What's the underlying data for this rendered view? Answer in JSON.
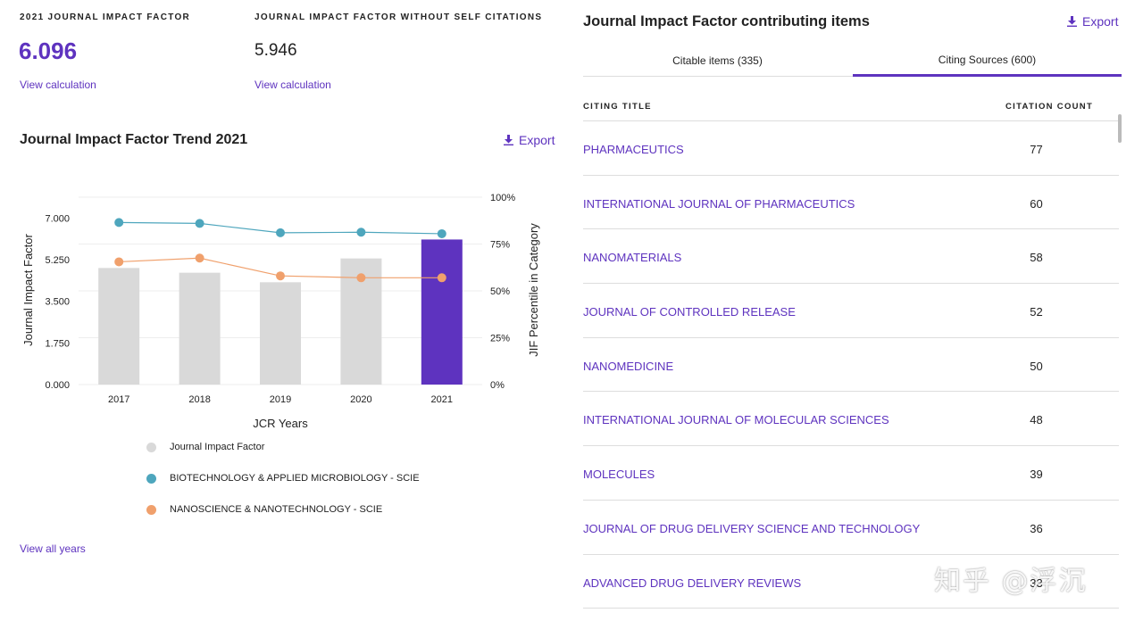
{
  "metrics": {
    "jif_label": "2021 JOURNAL IMPACT FACTOR",
    "jif_value": "6.096",
    "jif_link": "View calculation",
    "jif_no_self_label": "JOURNAL IMPACT FACTOR WITHOUT SELF CITATIONS",
    "jif_no_self_value": "5.946",
    "jif_no_self_link": "View calculation"
  },
  "trend": {
    "title": "Journal Impact Factor Trend 2021",
    "export_label": "Export",
    "view_all_years": "View all years"
  },
  "chart_data": {
    "type": "bar",
    "xlabel": "JCR Years",
    "ylabel": "Journal Impact Factor",
    "y2label": "JIF Percentile in Category",
    "categories": [
      "2017",
      "2018",
      "2019",
      "2020",
      "2021"
    ],
    "ylim": [
      0,
      7.875
    ],
    "y_ticks": [
      "0.000",
      "1.750",
      "3.500",
      "5.250",
      "7.000"
    ],
    "y2_ticks": [
      "0%",
      "25%",
      "50%",
      "75%",
      "100%"
    ],
    "bars": {
      "name": "Journal Impact Factor",
      "values": [
        4.9,
        4.7,
        4.3,
        5.3,
        6.096
      ],
      "colors": [
        "#d9d9d9",
        "#d9d9d9",
        "#d9d9d9",
        "#d9d9d9",
        "#5e33bf"
      ]
    },
    "series": [
      {
        "name": "BIOTECHNOLOGY & APPLIED MICROBIOLOGY - SCIE",
        "color": "#4ea6bd",
        "values": [
          86.5,
          86,
          81,
          81.3,
          80.5
        ]
      },
      {
        "name": "NANOSCIENCE & NANOTECHNOLOGY - SCIE",
        "color": "#f0a06c",
        "values": [
          65.5,
          67.5,
          58,
          57,
          57
        ]
      }
    ]
  },
  "contrib": {
    "title": "Journal Impact Factor contributing items",
    "export_label": "Export",
    "tabs": [
      {
        "label": "Citable items (335)"
      },
      {
        "label": "Citing Sources (600)"
      }
    ],
    "col_title": "CITING TITLE",
    "col_count": "CITATION COUNT",
    "rows": [
      {
        "title": "PHARMACEUTICS",
        "count": "77"
      },
      {
        "title": "INTERNATIONAL JOURNAL OF PHARMACEUTICS",
        "count": "60"
      },
      {
        "title": "NANOMATERIALS",
        "count": "58"
      },
      {
        "title": "JOURNAL OF CONTROLLED RELEASE",
        "count": "52"
      },
      {
        "title": "NANOMEDICINE",
        "count": "50"
      },
      {
        "title": "INTERNATIONAL JOURNAL OF MOLECULAR SCIENCES",
        "count": "48"
      },
      {
        "title": "MOLECULES",
        "count": "39"
      },
      {
        "title": "JOURNAL OF DRUG DELIVERY SCIENCE AND TECHNOLOGY",
        "count": "36"
      },
      {
        "title": "ADVANCED DRUG DELIVERY REVIEWS",
        "count": "33"
      }
    ]
  },
  "watermark": "知乎 @浮沉"
}
